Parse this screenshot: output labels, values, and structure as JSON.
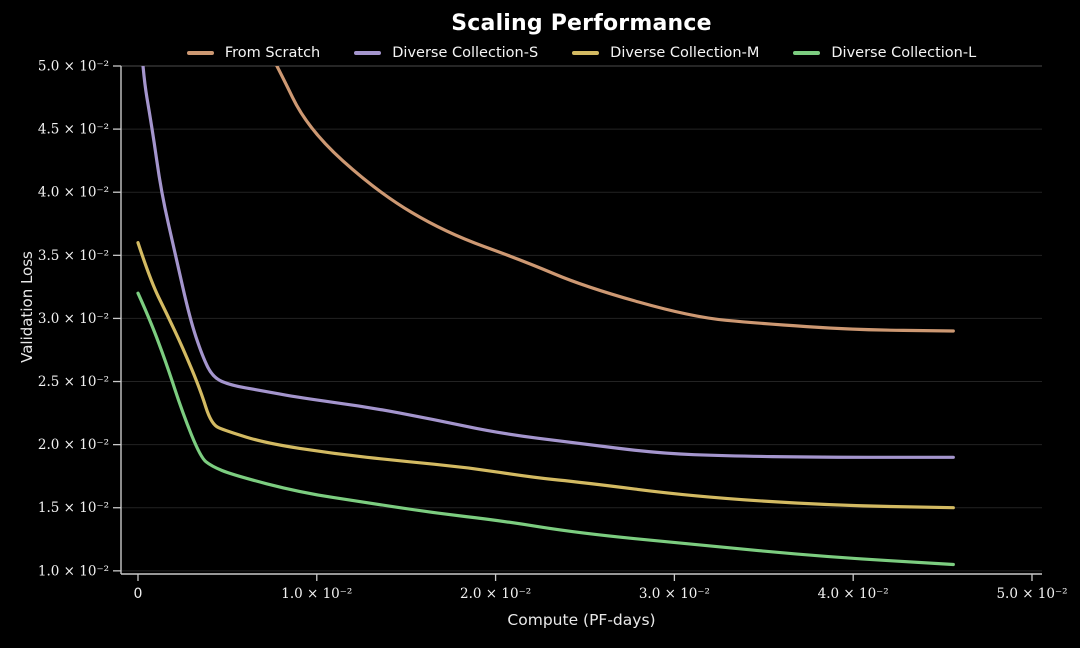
{
  "chart_data": {
    "type": "line",
    "title": "Scaling Performance",
    "xlabel": "Compute (PF-days)",
    "ylabel": "Validation Loss",
    "xlim": [
      -0.00095,
      0.05056
    ],
    "ylim": [
      0.00975,
      0.05
    ],
    "grid": "horizontal-only",
    "legend_position": "top-center",
    "background_color": "#000000",
    "axis_color": "#c9c9c9",
    "gridline_color": "#232323",
    "top_gridline_color": "#4d4d4d",
    "text_color": "#f2f2f2",
    "x_ticks": [
      {
        "v": 0,
        "label": "0",
        "plain": true
      },
      {
        "v": 0.01,
        "label": "1.0 × 10⁻²"
      },
      {
        "v": 0.02,
        "label": "2.0 × 10⁻²"
      },
      {
        "v": 0.03,
        "label": "3.0 × 10⁻²"
      },
      {
        "v": 0.04,
        "label": "4.0 × 10⁻²"
      },
      {
        "v": 0.05,
        "label": "5.0 × 10⁻²"
      }
    ],
    "y_ticks": [
      {
        "v": 0.05,
        "label": "5.0 × 10⁻²"
      },
      {
        "v": 0.045,
        "label": "4.5 × 10⁻²"
      },
      {
        "v": 0.04,
        "label": "4.0 × 10⁻²"
      },
      {
        "v": 0.035,
        "label": "3.5 × 10⁻²"
      },
      {
        "v": 0.03,
        "label": "3.0 × 10⁻²"
      },
      {
        "v": 0.025,
        "label": "2.5 × 10⁻²"
      },
      {
        "v": 0.02,
        "label": "2.0 × 10⁻²"
      },
      {
        "v": 0.015,
        "label": "1.5 × 10⁻²"
      },
      {
        "v": 0.01,
        "label": "1.0 × 10⁻²"
      }
    ],
    "series": [
      {
        "name": "From Scratch",
        "color": "#cd9872",
        "points": [
          [
            0.0052,
            0.057
          ],
          [
            0.0078,
            0.05
          ],
          [
            0.0095,
            0.045
          ],
          [
            0.0134,
            0.04
          ],
          [
            0.0172,
            0.0368
          ],
          [
            0.0215,
            0.0346
          ],
          [
            0.025,
            0.0325
          ],
          [
            0.031,
            0.0301
          ],
          [
            0.0348,
            0.0296
          ],
          [
            0.04,
            0.0291
          ],
          [
            0.0456,
            0.029
          ]
        ]
      },
      {
        "name": "Diverse Collection-S",
        "color": "#a495cd",
        "points": [
          [
            0.0,
            0.056
          ],
          [
            0.0002,
            0.05
          ],
          [
            0.0008,
            0.045
          ],
          [
            0.0013,
            0.04
          ],
          [
            0.0021,
            0.035
          ],
          [
            0.0029,
            0.03
          ],
          [
            0.0036,
            0.027
          ],
          [
            0.0042,
            0.0253
          ],
          [
            0.0052,
            0.0247
          ],
          [
            0.0068,
            0.0243
          ],
          [
            0.0091,
            0.0237
          ],
          [
            0.0128,
            0.023
          ],
          [
            0.0165,
            0.022
          ],
          [
            0.0202,
            0.0209
          ],
          [
            0.0246,
            0.0201
          ],
          [
            0.0292,
            0.0193
          ],
          [
            0.033,
            0.0191
          ],
          [
            0.038,
            0.019
          ],
          [
            0.0456,
            0.019
          ]
        ]
      },
      {
        "name": "Diverse Collection-M",
        "color": "#d3ba62",
        "points": [
          [
            0.0,
            0.036
          ],
          [
            0.0007,
            0.033
          ],
          [
            0.0016,
            0.0304
          ],
          [
            0.0025,
            0.0277
          ],
          [
            0.0035,
            0.0243
          ],
          [
            0.0041,
            0.0216
          ],
          [
            0.0049,
            0.0211
          ],
          [
            0.0072,
            0.0201
          ],
          [
            0.0109,
            0.0193
          ],
          [
            0.0147,
            0.0187
          ],
          [
            0.0184,
            0.0182
          ],
          [
            0.0221,
            0.0174
          ],
          [
            0.0249,
            0.017
          ],
          [
            0.031,
            0.0159
          ],
          [
            0.0385,
            0.0152
          ],
          [
            0.0456,
            0.015
          ]
        ]
      },
      {
        "name": "Diverse Collection-L",
        "color": "#7ccd80",
        "points": [
          [
            0.0,
            0.032
          ],
          [
            0.0007,
            0.0298
          ],
          [
            0.0016,
            0.0264
          ],
          [
            0.0025,
            0.0225
          ],
          [
            0.0035,
            0.019
          ],
          [
            0.0041,
            0.0183
          ],
          [
            0.0053,
            0.0176
          ],
          [
            0.0091,
            0.0162
          ],
          [
            0.0128,
            0.0154
          ],
          [
            0.0165,
            0.0146
          ],
          [
            0.0202,
            0.014
          ],
          [
            0.0246,
            0.013
          ],
          [
            0.031,
            0.0121
          ],
          [
            0.0385,
            0.0111
          ],
          [
            0.0456,
            0.0105
          ]
        ]
      }
    ]
  }
}
